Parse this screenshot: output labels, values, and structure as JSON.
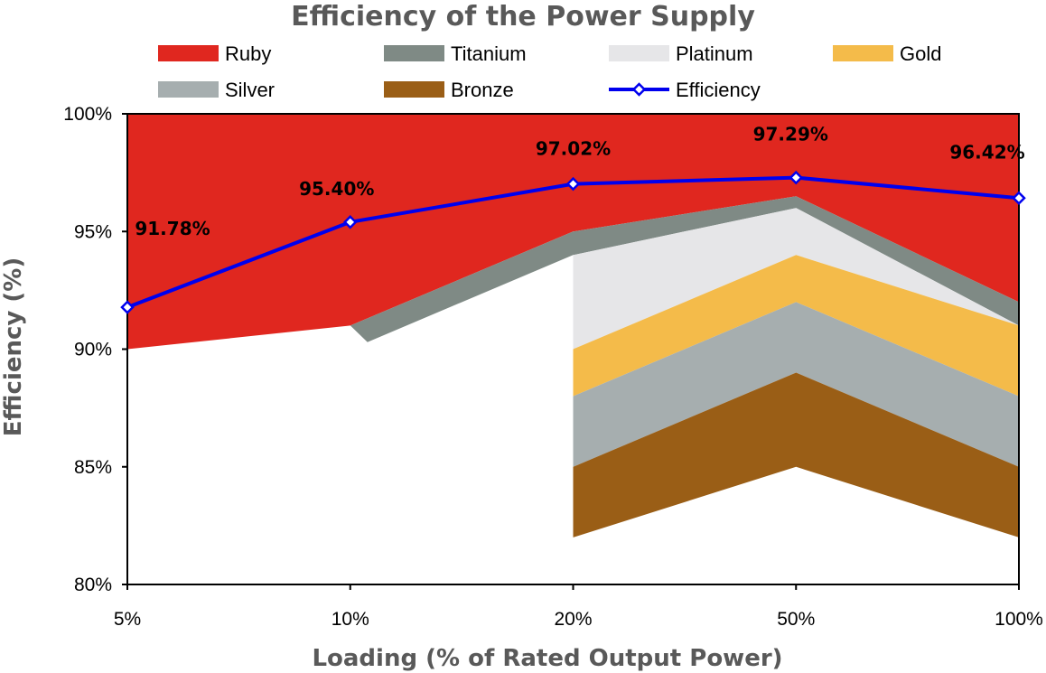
{
  "chart_data": {
    "type": "area",
    "title": "Efficiency of the Power Supply",
    "xlabel": "Loading (% of Rated Output Power)",
    "ylabel": "Efficiency (%)",
    "categories": [
      "5%",
      "10%",
      "20%",
      "50%",
      "100%"
    ],
    "ylim": [
      80,
      100
    ],
    "yticks": [
      "80%",
      "85%",
      "90%",
      "95%",
      "100%"
    ],
    "grid": false,
    "legend_position": "top",
    "bands": [
      {
        "name": "Ruby",
        "color": "#e0271f",
        "lower": [
          90,
          91,
          95,
          96.5,
          92
        ],
        "start_index": 0
      },
      {
        "name": "Titanium",
        "color": "#7f8a85",
        "lower": [
          90.3,
          94,
          96,
          91
        ],
        "start_index": 1
      },
      {
        "name": "Platinum",
        "color": "#e6e6e8",
        "lower": [
          90,
          94,
          91
        ],
        "start_index": 2
      },
      {
        "name": "Gold",
        "color": "#f4bb4a",
        "lower": [
          88,
          92,
          88
        ],
        "start_index": 2
      },
      {
        "name": "Silver",
        "color": "#a6aeaf",
        "lower": [
          85,
          89,
          85
        ],
        "start_index": 2
      },
      {
        "name": "Bronze",
        "color": "#9a5e16",
        "lower": [
          82,
          85,
          82
        ],
        "start_index": 2
      }
    ],
    "series": [
      {
        "name": "Efficiency",
        "color": "#0000ee",
        "values": [
          91.78,
          95.4,
          97.02,
          97.29,
          96.42
        ],
        "labels": [
          "91.78%",
          "95.40%",
          "97.02%",
          "97.29%",
          "96.42%"
        ]
      }
    ]
  }
}
